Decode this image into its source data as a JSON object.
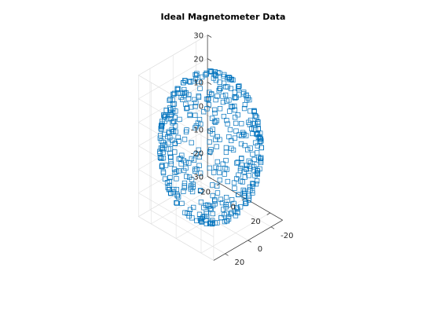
{
  "chart_data": {
    "type": "scatter",
    "projection": "3d",
    "title": "Ideal Magnetometer Data",
    "xlabel": "",
    "ylabel": "",
    "zlabel": "",
    "xlim": [
      -30,
      30
    ],
    "ylim": [
      -30,
      30
    ],
    "zlim": [
      -30,
      30
    ],
    "x_ticks": [
      -20,
      0,
      20
    ],
    "y_ticks": [
      -20,
      0,
      20
    ],
    "z_ticks": [
      -30,
      -20,
      -10,
      0,
      10,
      20,
      30
    ],
    "x_tick_labels": [
      "-20",
      "0",
      "20"
    ],
    "y_tick_labels": [
      "-20",
      "0",
      "20"
    ],
    "z_tick_labels": [
      "-30",
      "-20",
      "-10",
      "0",
      "10",
      "20",
      "30"
    ],
    "grid": true,
    "marker": "square",
    "marker_color": "#0072bd",
    "series": [
      {
        "name": "",
        "distribution": "points on a sphere centred at (0, 0, 0)",
        "radius": 30,
        "count": 500
      }
    ]
  }
}
